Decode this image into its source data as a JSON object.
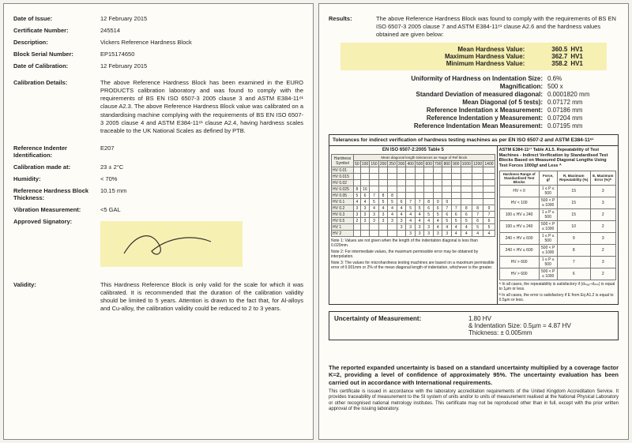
{
  "left": {
    "dateIssue": {
      "label": "Date of Issue:",
      "value": "12 February 2015"
    },
    "certNo": {
      "label": "Certificate Number:",
      "value": "245514"
    },
    "description": {
      "label": "Description:",
      "value": "Vickers Reference Hardness Block"
    },
    "serial": {
      "label": "Block Serial Number:",
      "value": "EP15174650"
    },
    "dateCal": {
      "label": "Date of Calibration:",
      "value": "12 February 2015"
    },
    "calDetails": {
      "label": "Calibration Details:",
      "value": "The above Reference Hardness Block has been examined in the EURO PRODUCTS calibration laboratory and was found to comply with the requirements of BS EN ISO 6507-3 2005 clause 3 and ASTM E384-11ᵉ¹ clause A2.3. The above Reference Hardness Block value was calibrated on a standardising machine complying with the requirements of BS EN ISO 6507-3 2005 clause 4 and ASTM E384-11ᵉ¹ clause A2.4, having hardness scales traceable to the UK National Scales as defined by PTB."
    },
    "indenter": {
      "label": "Reference Indenter Identification:",
      "value": "E207"
    },
    "calAt": {
      "label": "Calibration made at:",
      "value": "23 ± 2°C"
    },
    "humidity": {
      "label": "Humidity:",
      "value": "< 70%"
    },
    "thickness": {
      "label": "Reference Hardness Block Thickness:",
      "value": "10.15 mm"
    },
    "vibration": {
      "label": "Vibration Measurement:",
      "value": "<5 GAL"
    },
    "approvedSig": {
      "label": "Approved Signatory:"
    },
    "validity": {
      "label": "Validity:",
      "value": "This Hardness Reference Block is only valid for the scale for which it was calibrated. It is recommended that the duration of the calibration validity should be limited to 5 years. Attention is drawn to the fact that, for Al-alloys and Cu-alloy, the calibration validity could be reduced to 2 to 3 years."
    }
  },
  "right": {
    "results": {
      "label": "Results:",
      "value": "The above Reference Hardness Block was found to comply with the requirements of BS EN ISO 6507-3 2005 clause 7 and ASTM E384-11ᵉ¹ clause A2.6 and the hardness values obtained are given below:"
    },
    "hardness": {
      "mean": {
        "label": "Mean Hardness Value:",
        "value": "360.5",
        "unit": "HV1"
      },
      "max": {
        "label": "Maximum Hardness Value:",
        "value": "362.7",
        "unit": "HV1"
      },
      "min": {
        "label": "Minimum Hardness Value:",
        "value": "358.2",
        "unit": "HV1"
      }
    },
    "meas": {
      "uniformity": {
        "label": "Uniformity of Hardness on Indentation Size:",
        "value": "0.6%"
      },
      "mag": {
        "label": "Magnification:",
        "value": "500 x"
      },
      "sd": {
        "label": "Standard Deviation of measured diagonal:",
        "value": "0.0001820 mm"
      },
      "meanDiag": {
        "label": "Mean Diagonal (of 5 tests):",
        "value": "0.07172 mm"
      },
      "refX": {
        "label": "Reference Indentation x Measurement:",
        "value": "0.07186 mm"
      },
      "refY": {
        "label": "Reference Indentation y Measurement:",
        "value": "0.07204 mm"
      },
      "refMean": {
        "label": "Reference Indentation Mean Measurement:",
        "value": "0.07195 mm"
      }
    },
    "tolerances": {
      "title": "Tolerances for indirect verification of hardness testing machines as per EN ISO 6507-2 and ASTM E384-11ᵉ¹",
      "leftHead": "EN ISO 6507-2:2005 Table 5",
      "leftSub": "Mean diagonal length tolerances as %age of Ref block",
      "rightHead": "ASTM E384-11ᵉ¹ Table A1.5. Repeatability of Test Machines - Indirect Verification by Standardised Test Blocks Based on Measured Diagonal Lengths Using Test Forces 1000gf and Less ᴬ",
      "leftRows": [
        "HV 0.01",
        "HV 0.015",
        "HV 0.02",
        "HV 0.025",
        "HV 0.05",
        "HV 0.1",
        "HV 0.2",
        "HV 0.3",
        "HV 0.5",
        "HV 1",
        "HV 2"
      ],
      "leftCols": [
        "50",
        "100",
        "150",
        "200",
        "250",
        "300",
        "400",
        "500",
        "600",
        "700",
        "800",
        "900",
        "1000",
        "1200",
        "1400"
      ],
      "leftData": [
        [
          "",
          "",
          "",
          "",
          "",
          "",
          "",
          "",
          "",
          "",
          "",
          "",
          "",
          "",
          ""
        ],
        [
          "",
          "",
          "",
          "",
          "",
          "",
          "",
          "",
          "",
          "",
          "",
          "",
          "",
          "",
          ""
        ],
        [
          "",
          "",
          "",
          "",
          "",
          "",
          "",
          "",
          "",
          "",
          "",
          "",
          "",
          "",
          ""
        ],
        [
          "8",
          "16",
          "",
          "",
          "",
          "",
          "",
          "",
          "",
          "",
          "",
          "",
          "",
          "",
          ""
        ],
        [
          "5",
          "6",
          "7",
          "8",
          "8",
          "",
          "",
          "",
          "",
          "",
          "",
          "",
          "",
          "",
          ""
        ],
        [
          "4",
          "4",
          "5",
          "5",
          "5",
          "6",
          "7",
          "7",
          "8",
          "9",
          "9",
          "",
          "",
          "",
          ""
        ],
        [
          "3",
          "3",
          "4",
          "4",
          "4",
          "4",
          "5",
          "5",
          "6",
          "6",
          "7",
          "7",
          "8",
          "8",
          "9"
        ],
        [
          "3",
          "3",
          "3",
          "3",
          "4",
          "4",
          "4",
          "4",
          "5",
          "5",
          "6",
          "6",
          "6",
          "7",
          "7"
        ],
        [
          "2",
          "3",
          "3",
          "3",
          "3",
          "3",
          "4",
          "4",
          "4",
          "4",
          "5",
          "5",
          "5",
          "6",
          "6"
        ],
        [
          "",
          "",
          "",
          "",
          "",
          "3",
          "3",
          "3",
          "3",
          "4",
          "4",
          "4",
          "4",
          "5",
          "5"
        ],
        [
          "",
          "",
          "",
          "",
          "",
          "",
          "3",
          "3",
          "3",
          "3",
          "3",
          "4",
          "4",
          "4",
          "4"
        ]
      ],
      "note1": "Note 1: Values are not given when the length of the indentation diagonal is less than 0.020mm.",
      "note2": "Note 2: For intermediate values, the maximum permissible error may be obtained by interpolation.",
      "note3": "Note 3: The values for microhardness testing machines are based on a maximum permissible error of 0.001mm or 2% of the mean diagonal length of indentation, whichever is the greater.",
      "rightRows": [
        [
          "HV < 0",
          "1 ≤ P ≤ 500",
          "15",
          "3"
        ],
        [
          "HV < 100",
          "500 < P ≤ 1000",
          "15",
          "3"
        ],
        [
          "100 ≤ HV ≤ 240",
          "1 ≤ P ≤ 500",
          "15",
          "2"
        ],
        [
          "100 ≤ HV ≤ 240",
          "500 < P ≤ 1000",
          "10",
          "2"
        ],
        [
          "240 < HV ≤ 600",
          "1 ≤ P ≤ 500",
          "9",
          "3"
        ],
        [
          "240 < HV ≤ 600",
          "500 < P ≤ 1000",
          "8",
          "2"
        ],
        [
          "HV > 600",
          "1 ≤ P ≤ 500",
          "7",
          "3"
        ],
        [
          "HV > 600",
          "500 < P ≤ 1000",
          "6",
          "2"
        ]
      ],
      "rightCols": [
        "Hardness Range of Standardised Test Blocks",
        "Force, gf",
        "R, Maximum Repeatability (%)",
        "E, Maximum Error (%)ᴬ"
      ],
      "rightFoot1": "ᴬ In all cases, the repeatability is satisfactory if (dₘₐₓ–dₘᵢₙ) is equal to 1µm or less.",
      "rightFoot2": "ᴮ In all cases, the error is satisfactory if E from Eq A1.2 is equal to 0.5µm or less."
    },
    "uncertainty": {
      "label": "Uncertainty of Measurement:",
      "l1": "1.80 HV",
      "l2": "& Indentation Size: 0.5µm = 4.87 HV",
      "l3": "Thickness: ± 0.005mm"
    },
    "footerBold": "The reported expanded uncertainty is based on a standard uncertainty multiplied by a coverage factor K=2, providing a level of confidence of approximately 95%. The uncertainty evaluation has been carried out in accordance with International requirements.",
    "footerSmall": "This certificate is issued in accordance with the laboratory accreditation requirements of the United Kingdom Accreditation Service. It provides traceability of measurement to the SI system of units and/or to units of measurement realised at the National Physical Laboratory or other recognised national metrology institutes. This certificate may not be reproduced other than in full, except with the prior written approval of the issuing laboratory."
  }
}
